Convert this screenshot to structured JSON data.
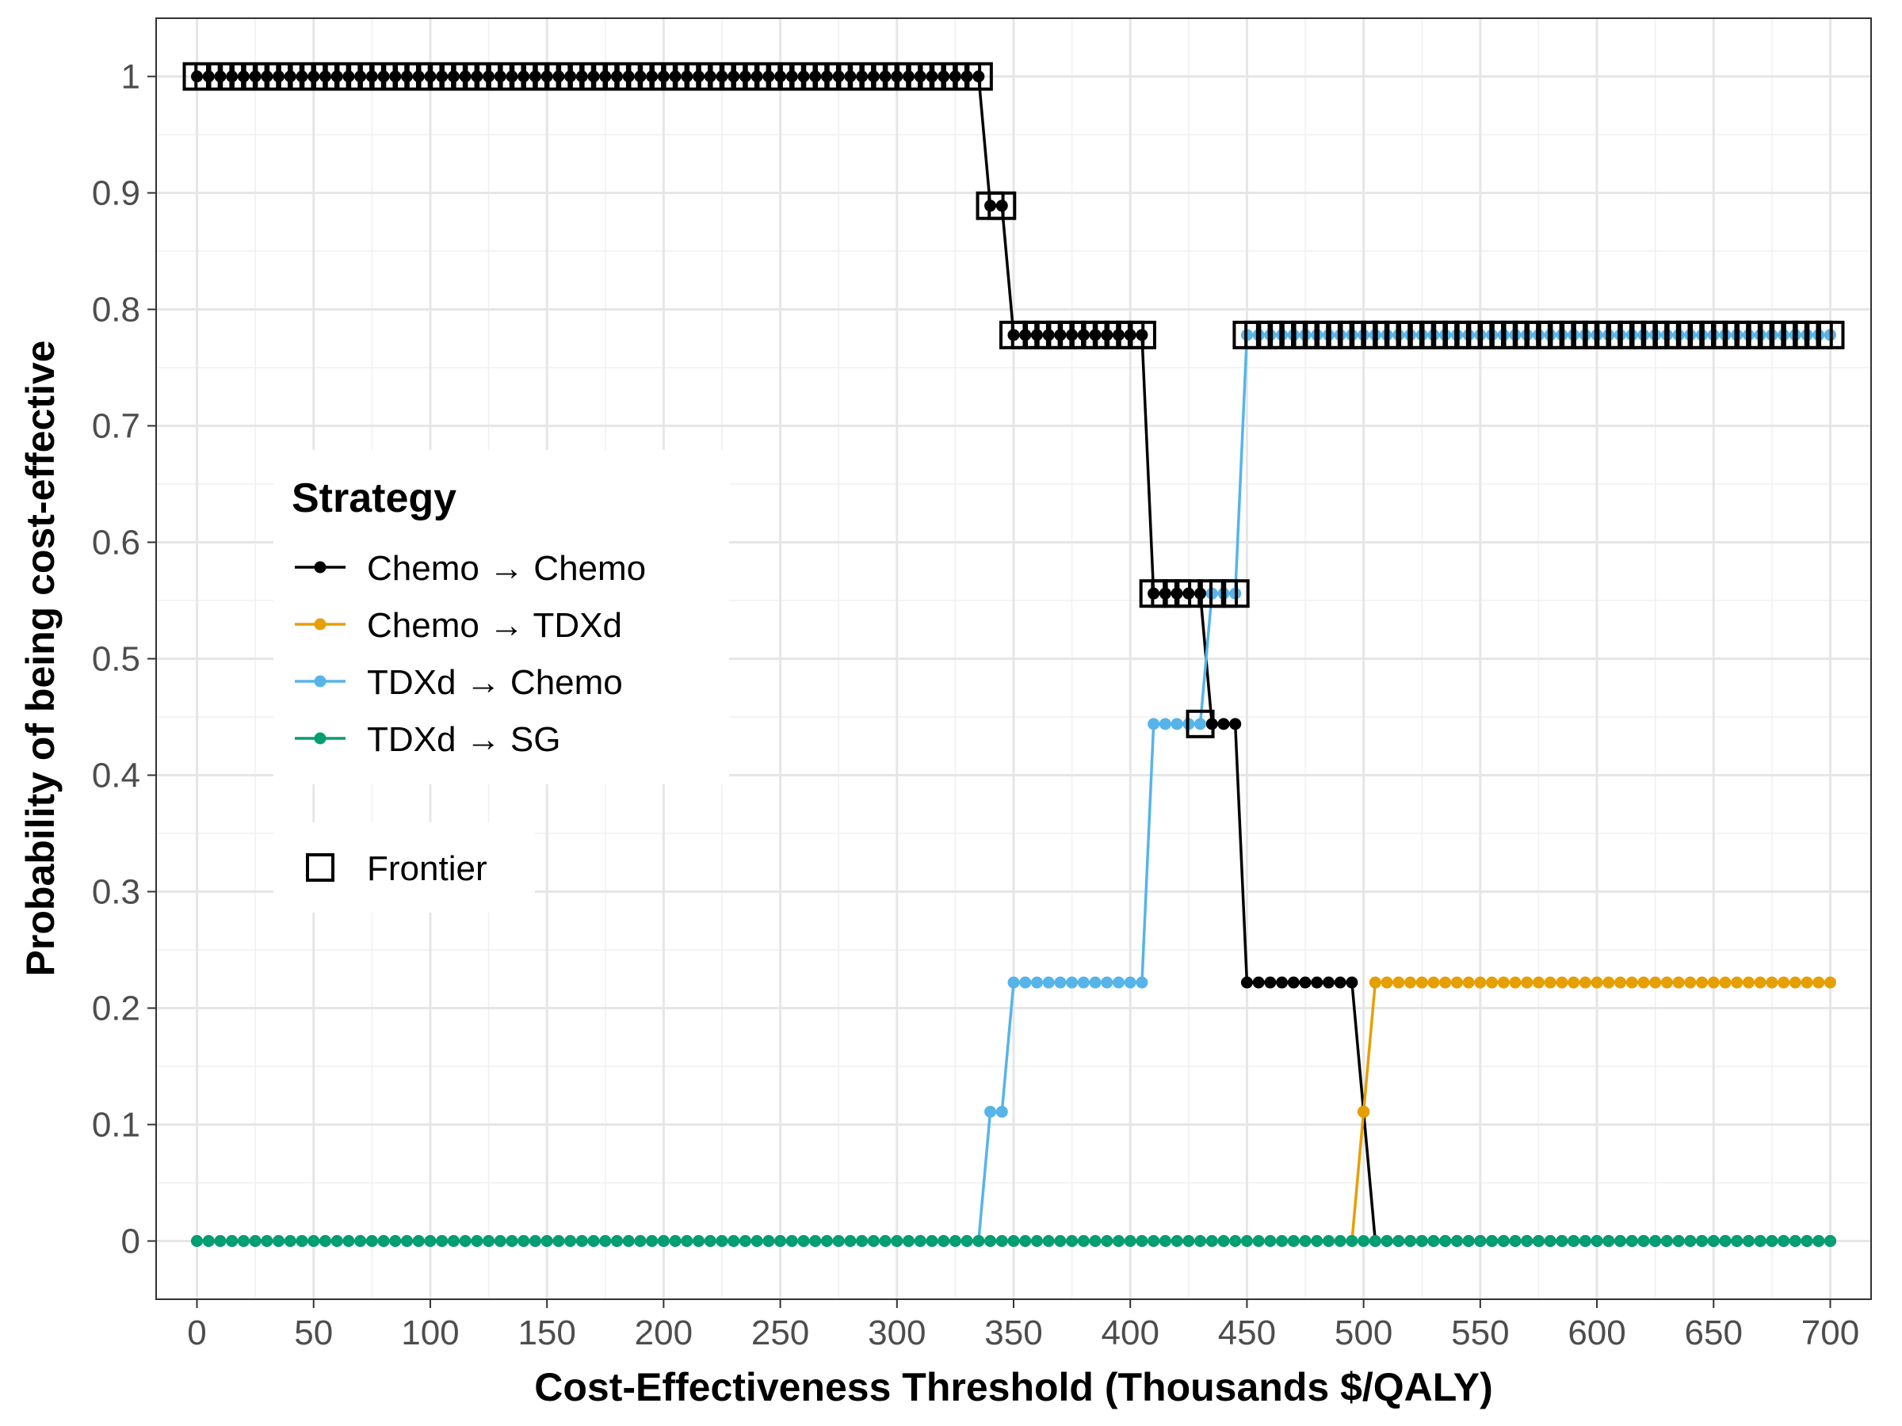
{
  "chart_data": {
    "type": "line",
    "xlabel": "Cost-Effectiveness Threshold (Thousands $/QALY)",
    "ylabel": "Probability of being cost-effective",
    "xlim": [
      -17.5,
      717.5
    ],
    "ylim": [
      -0.05,
      1.05
    ],
    "x_ticks": [
      0,
      50,
      100,
      150,
      200,
      250,
      300,
      350,
      400,
      450,
      500,
      550,
      600,
      650,
      700
    ],
    "x_tick_labels": [
      "0",
      "50",
      "100",
      "150",
      "200",
      "250",
      "300",
      "350",
      "400",
      "450",
      "500",
      "550",
      "600",
      "650",
      "700"
    ],
    "y_ticks": [
      0,
      0.1,
      0.2,
      0.3,
      0.4,
      0.5,
      0.6,
      0.7,
      0.8,
      0.9,
      1
    ],
    "y_tick_labels": [
      "0",
      "0.1",
      "0.2",
      "0.3",
      "0.4",
      "0.5",
      "0.6",
      "0.7",
      "0.8",
      "0.9",
      "1"
    ],
    "grid": true,
    "x_step": 5,
    "legend": {
      "title": "Strategy",
      "placement": "middle-left",
      "frontier_label": "Frontier"
    },
    "series": [
      {
        "name": "Chemo → Chemo",
        "color": "#000000",
        "segments": [
          {
            "x_from": 0,
            "x_to": 335,
            "y": 1
          },
          {
            "x_from": 340,
            "x_to": 345,
            "y": 0.889
          },
          {
            "x_from": 350,
            "x_to": 405,
            "y": 0.778
          },
          {
            "x_from": 410,
            "x_to": 430,
            "y": 0.556
          },
          {
            "x_from": 435,
            "x_to": 445,
            "y": 0.444
          },
          {
            "x_from": 450,
            "x_to": 495,
            "y": 0.222
          },
          {
            "x_from": 500,
            "x_to": 500,
            "y": 0.111
          },
          {
            "x_from": 505,
            "x_to": 700,
            "y": 0
          }
        ]
      },
      {
        "name": "Chemo → TDXd",
        "color": "#E69F00",
        "segments": [
          {
            "x_from": 0,
            "x_to": 495,
            "y": 0
          },
          {
            "x_from": 500,
            "x_to": 500,
            "y": 0.111
          },
          {
            "x_from": 505,
            "x_to": 700,
            "y": 0.222
          }
        ]
      },
      {
        "name": "TDXd → Chemo",
        "color": "#56B4E9",
        "segments": [
          {
            "x_from": 0,
            "x_to": 335,
            "y": 0
          },
          {
            "x_from": 340,
            "x_to": 345,
            "y": 0.111
          },
          {
            "x_from": 350,
            "x_to": 405,
            "y": 0.222
          },
          {
            "x_from": 410,
            "x_to": 430,
            "y": 0.444
          },
          {
            "x_from": 435,
            "x_to": 445,
            "y": 0.556
          },
          {
            "x_from": 450,
            "x_to": 700,
            "y": 0.778
          }
        ]
      },
      {
        "name": "TDXd → SG",
        "color": "#009E73",
        "segments": [
          {
            "x_from": 0,
            "x_to": 700,
            "y": 0
          }
        ]
      }
    ],
    "frontier": [
      {
        "x_from": 0,
        "x_to": 335,
        "y": 1
      },
      {
        "x_from": 340,
        "x_to": 345,
        "y": 0.889
      },
      {
        "x_from": 350,
        "x_to": 405,
        "y": 0.778
      },
      {
        "x_from": 410,
        "x_to": 425,
        "y": 0.556
      },
      {
        "x_from": 430,
        "x_to": 430,
        "y": 0.444
      },
      {
        "x_from": 435,
        "x_to": 445,
        "y": 0.556
      },
      {
        "x_from": 450,
        "x_to": 700,
        "y": 0.778
      }
    ]
  }
}
